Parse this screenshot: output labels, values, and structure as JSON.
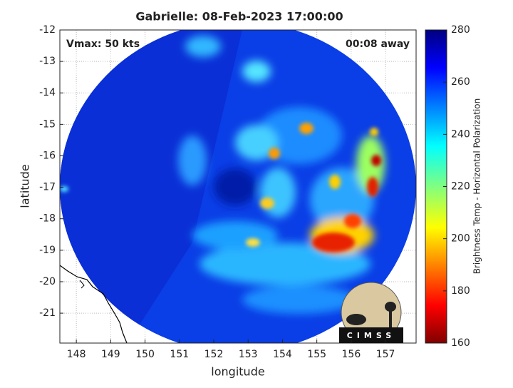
{
  "chart_data": {
    "type": "map",
    "title": "Gabrielle: 08-Feb-2023 17:00:00",
    "annotations": [
      "Vmax: 50 kts",
      "00:08 away"
    ],
    "xlabel": "longitude",
    "ylabel": "latitude",
    "xlim": [
      147.52,
      157.89
    ],
    "ylim": [
      -21.95,
      -12
    ],
    "xticks": [
      148,
      149,
      150,
      151,
      152,
      153,
      154,
      155,
      156,
      157
    ],
    "yticks": [
      -12,
      -13,
      -14,
      -15,
      -16,
      -17,
      -18,
      -19,
      -20,
      -21
    ],
    "grid": true,
    "colorbar": {
      "label": "Brightness Temp - Horizontal Polarization",
      "lim": [
        160,
        280
      ],
      "ticks": [
        160,
        180,
        200,
        220,
        240,
        260,
        280
      ]
    },
    "logo": "CIMSS"
  }
}
